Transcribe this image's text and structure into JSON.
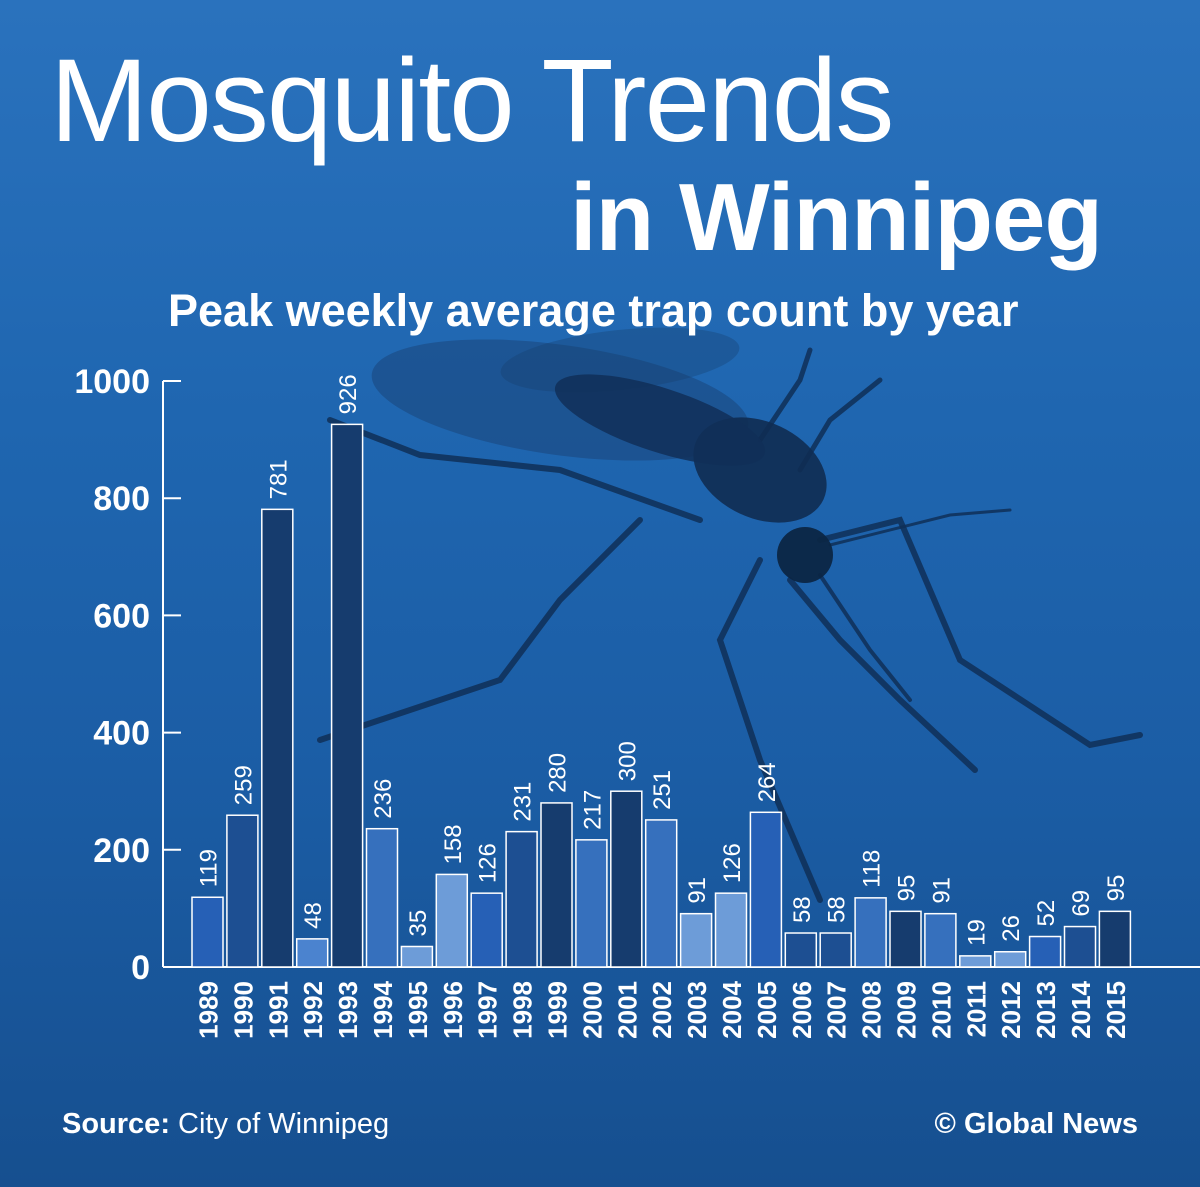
{
  "title_line1": "Mosquito Trends",
  "title_line2": "in Winnipeg",
  "colors": {
    "background": "#1f66b0",
    "bar_shades": [
      "#2660b6",
      "#1d4f92",
      "#163c6e",
      "#4b83cf",
      "#6d9cd8",
      "#3670bd"
    ],
    "bar_stroke": "#ffffff",
    "axis": "#ffffff"
  },
  "chart_data": {
    "type": "bar",
    "title": "Peak weekly average trap count by year",
    "xlabel": "",
    "ylabel": "",
    "ylim": [
      0,
      1000
    ],
    "yticks": [
      0,
      200,
      400,
      600,
      800,
      1000
    ],
    "grid": false,
    "legend": "none",
    "categories": [
      "1989",
      "1990",
      "1991",
      "1992",
      "1993",
      "1994",
      "1995",
      "1996",
      "1997",
      "1998",
      "1999",
      "2000",
      "2001",
      "2002",
      "2003",
      "2004",
      "2005",
      "2006",
      "2007",
      "2008",
      "2009",
      "2010",
      "2011",
      "2012",
      "2013",
      "2014",
      "2015"
    ],
    "values": [
      119,
      259,
      781,
      48,
      926,
      236,
      35,
      158,
      126,
      231,
      280,
      217,
      300,
      251,
      91,
      126,
      264,
      58,
      58,
      118,
      95,
      91,
      19,
      26,
      52,
      69,
      95
    ],
    "shade_index": [
      0,
      1,
      2,
      3,
      2,
      5,
      4,
      4,
      0,
      1,
      2,
      5,
      2,
      5,
      4,
      4,
      0,
      1,
      1,
      5,
      2,
      5,
      4,
      4,
      0,
      1,
      2
    ]
  },
  "footer": {
    "source_label": "Source:",
    "source_text": " City of Winnipeg",
    "credit": "© Global News"
  }
}
